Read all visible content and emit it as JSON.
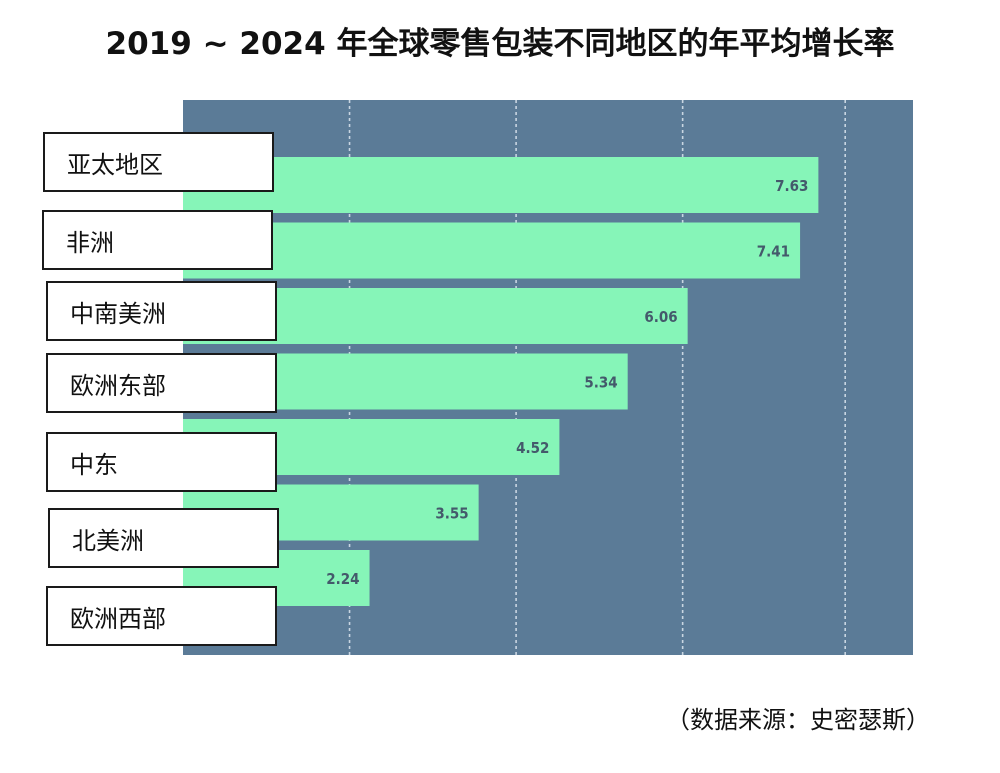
{
  "chart_data": {
    "type": "bar",
    "orientation": "horizontal",
    "title": "2019 ~ 2024 年全球零售包装不同地区的年平均增长率",
    "categories": [
      "亚太地区",
      "非洲",
      "中南美洲",
      "欧洲东部",
      "中东",
      "北美洲",
      "欧洲西部"
    ],
    "values": [
      7.63,
      7.41,
      6.06,
      5.34,
      4.52,
      3.55,
      2.24
    ],
    "value_labels": [
      "7.63",
      "7.41",
      "6.06",
      "5.34",
      "4.52",
      "3.55",
      "2.24"
    ],
    "xlim": [
      0,
      8
    ],
    "grid": true,
    "colors": {
      "plot_bg": "#5b7b97",
      "bar": "#86f5b8",
      "grid": "#c9d6e2"
    },
    "source": "（数据来源：史密瑟斯）"
  }
}
